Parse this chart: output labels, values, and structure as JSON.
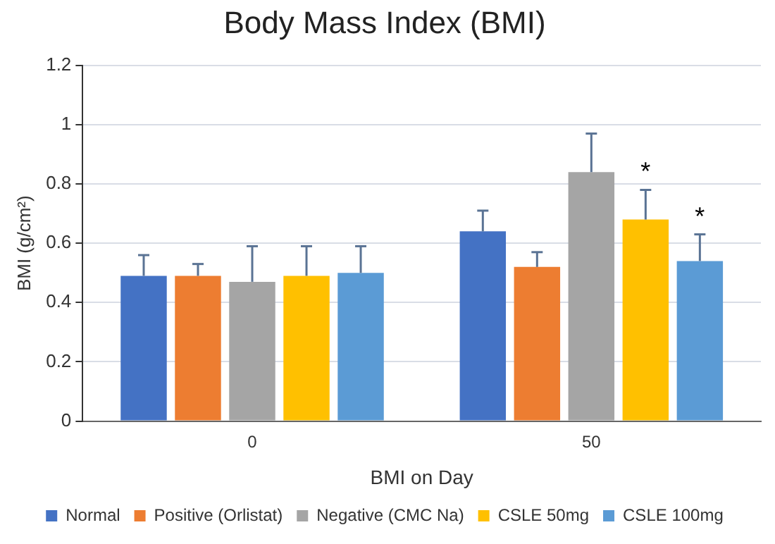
{
  "chart_data": {
    "type": "bar",
    "title": "Body Mass Index (BMI)",
    "xlabel": "BMI on Day",
    "ylabel": "BMI (g/cm²)",
    "categories": [
      "0",
      "50"
    ],
    "series": [
      {
        "name": "Normal",
        "color": "#4472c4",
        "values": [
          0.49,
          0.64
        ],
        "errors": [
          [
            0.49,
            0.56
          ],
          [
            0.64,
            0.71
          ]
        ]
      },
      {
        "name": "Positive (Orlistat)",
        "color": "#ed7d31",
        "values": [
          0.49,
          0.52
        ],
        "errors": [
          [
            0.49,
            0.53
          ],
          [
            0.52,
            0.57
          ]
        ]
      },
      {
        "name": "Negative (CMC Na)",
        "color": "#a5a5a5",
        "values": [
          0.47,
          0.84
        ],
        "errors": [
          [
            0.47,
            0.59
          ],
          [
            0.84,
            0.97
          ]
        ]
      },
      {
        "name": "CSLE 50mg",
        "color": "#ffc000",
        "values": [
          0.49,
          0.68
        ],
        "errors": [
          [
            0.49,
            0.59
          ],
          [
            0.68,
            0.78
          ]
        ]
      },
      {
        "name": "CSLE 100mg",
        "color": "#5b9bd5",
        "values": [
          0.5,
          0.54
        ],
        "errors": [
          [
            0.5,
            0.59
          ],
          [
            0.54,
            0.63
          ]
        ]
      }
    ],
    "annotations": [
      "*",
      "*"
    ],
    "ylim": [
      0,
      1.2
    ],
    "yticks": [
      0,
      0.2,
      0.4,
      0.6,
      0.8,
      1,
      1.2
    ],
    "grid": "y",
    "legend": "bottom"
  }
}
